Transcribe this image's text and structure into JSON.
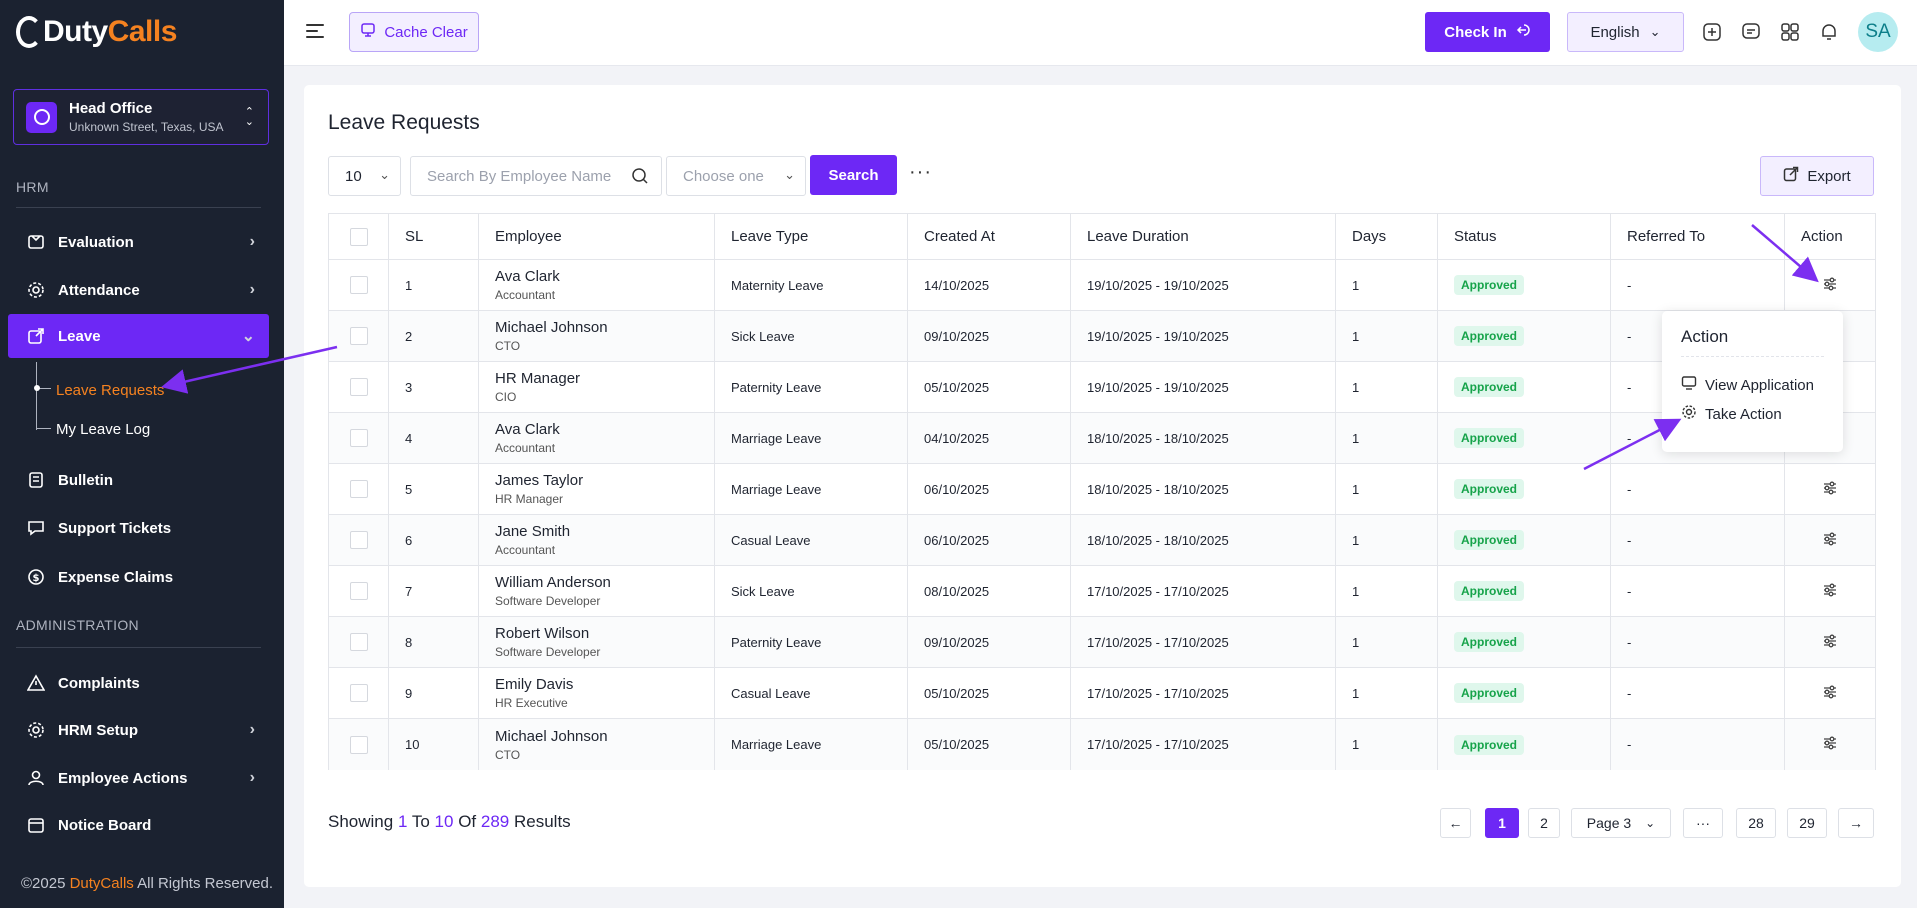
{
  "brand": {
    "part1": "Duty",
    "part2": "Calls"
  },
  "branch": {
    "title": "Head Office",
    "subtitle": "Unknown Street, Texas, USA"
  },
  "sidebar": {
    "section_hrm": "HRM",
    "section_admin": "ADMINISTRATION",
    "items": [
      {
        "label": "Evaluation"
      },
      {
        "label": "Attendance"
      },
      {
        "label": "Leave"
      },
      {
        "label": "Bulletin"
      },
      {
        "label": "Support Tickets"
      },
      {
        "label": "Expense Claims"
      },
      {
        "label": "Complaints"
      },
      {
        "label": "HRM Setup"
      },
      {
        "label": "Employee Actions"
      },
      {
        "label": "Notice Board"
      }
    ],
    "sub_items": [
      {
        "label": "Leave Requests"
      },
      {
        "label": "My Leave Log"
      }
    ],
    "copyright_prefix": "©2025 ",
    "copyright_brand": "DutyCalls",
    "copyright_suffix": " All Rights Reserved."
  },
  "topbar": {
    "cache_clear": "Cache Clear",
    "check_in": "Check In",
    "language": "English",
    "avatar_initials": "SA"
  },
  "page": {
    "title": "Leave Requests",
    "per_page": "10",
    "search_placeholder": "Search By Employee Name",
    "filter_placeholder": "Choose one",
    "search_button": "Search",
    "more": "···",
    "export": "Export"
  },
  "table": {
    "columns": [
      "SL",
      "Employee",
      "Leave Type",
      "Created At",
      "Leave Duration",
      "Days",
      "Status",
      "Referred To",
      "Action"
    ],
    "rows": [
      {
        "sl": "1",
        "name": "Ava Clark",
        "role": "Accountant",
        "type": "Maternity Leave",
        "created": "14/10/2025",
        "duration": "19/10/2025 - 19/10/2025",
        "days": "1",
        "status": "Approved",
        "referred": "-"
      },
      {
        "sl": "2",
        "name": "Michael Johnson",
        "role": "CTO",
        "type": "Sick Leave",
        "created": "09/10/2025",
        "duration": "19/10/2025 - 19/10/2025",
        "days": "1",
        "status": "Approved",
        "referred": "-"
      },
      {
        "sl": "3",
        "name": "HR Manager",
        "role": "CIO",
        "type": "Paternity Leave",
        "created": "05/10/2025",
        "duration": "19/10/2025 - 19/10/2025",
        "days": "1",
        "status": "Approved",
        "referred": "-"
      },
      {
        "sl": "4",
        "name": "Ava Clark",
        "role": "Accountant",
        "type": "Marriage Leave",
        "created": "04/10/2025",
        "duration": "18/10/2025 - 18/10/2025",
        "days": "1",
        "status": "Approved",
        "referred": "-"
      },
      {
        "sl": "5",
        "name": "James Taylor",
        "role": "HR Manager",
        "type": "Marriage Leave",
        "created": "06/10/2025",
        "duration": "18/10/2025 - 18/10/2025",
        "days": "1",
        "status": "Approved",
        "referred": "-"
      },
      {
        "sl": "6",
        "name": "Jane Smith",
        "role": "Accountant",
        "type": "Casual Leave",
        "created": "06/10/2025",
        "duration": "18/10/2025 - 18/10/2025",
        "days": "1",
        "status": "Approved",
        "referred": "-"
      },
      {
        "sl": "7",
        "name": "William Anderson",
        "role": "Software Developer",
        "type": "Sick Leave",
        "created": "08/10/2025",
        "duration": "17/10/2025 - 17/10/2025",
        "days": "1",
        "status": "Approved",
        "referred": "-"
      },
      {
        "sl": "8",
        "name": "Robert Wilson",
        "role": "Software Developer",
        "type": "Paternity Leave",
        "created": "09/10/2025",
        "duration": "17/10/2025 - 17/10/2025",
        "days": "1",
        "status": "Approved",
        "referred": "-"
      },
      {
        "sl": "9",
        "name": "Emily Davis",
        "role": "HR Executive",
        "type": "Casual Leave",
        "created": "05/10/2025",
        "duration": "17/10/2025 - 17/10/2025",
        "days": "1",
        "status": "Approved",
        "referred": "-"
      },
      {
        "sl": "10",
        "name": "Michael Johnson",
        "role": "CTO",
        "type": "Marriage Leave",
        "created": "05/10/2025",
        "duration": "17/10/2025 - 17/10/2025",
        "days": "1",
        "status": "Approved",
        "referred": "-"
      }
    ]
  },
  "footer": {
    "showing": "Showing",
    "from": "1",
    "to_word": "To",
    "to": "10",
    "of_word": "Of",
    "total": "289",
    "results_word": "Results"
  },
  "pagination": {
    "prev": "←",
    "pages": [
      "1",
      "2"
    ],
    "page_select": "Page 3",
    "ellipsis": "···",
    "last_pages": [
      "28",
      "29"
    ],
    "next": "→"
  },
  "popup": {
    "title": "Action",
    "items": [
      "View Application",
      "Take Action"
    ]
  },
  "colors": {
    "accent": "#6d28f5",
    "brand_orange": "#f58220",
    "sidebar_bg": "#1b2230",
    "approved": "#16a34a"
  }
}
